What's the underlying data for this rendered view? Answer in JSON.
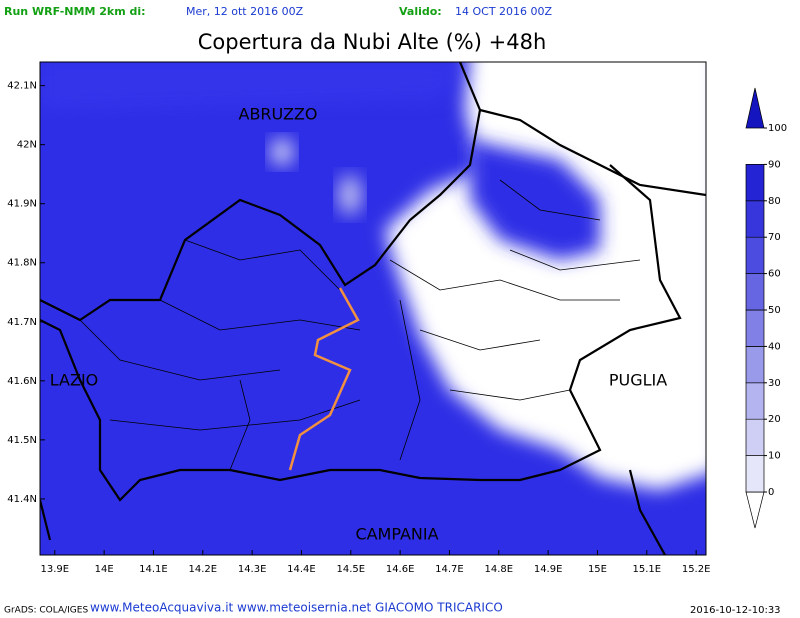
{
  "header": {
    "run_label": "Run WRF-NMM 2km di:",
    "run_date": "Mer, 12 ott 2016 00Z",
    "valid_label": "Valido:",
    "valid_date": "14 OCT 2016 00Z",
    "title": "Copertura da Nubi Alte (%) +48h"
  },
  "map": {
    "xlim": [
      13.87,
      15.22
    ],
    "ylim": [
      41.305,
      42.14
    ],
    "xticks": [
      {
        "value": 13.9,
        "label": "13.9E"
      },
      {
        "value": 14.0,
        "label": "14E"
      },
      {
        "value": 14.1,
        "label": "14.1E"
      },
      {
        "value": 14.2,
        "label": "14.2E"
      },
      {
        "value": 14.3,
        "label": "14.3E"
      },
      {
        "value": 14.4,
        "label": "14.4E"
      },
      {
        "value": 14.5,
        "label": "14.5E"
      },
      {
        "value": 14.6,
        "label": "14.6E"
      },
      {
        "value": 14.7,
        "label": "14.7E"
      },
      {
        "value": 14.8,
        "label": "14.8E"
      },
      {
        "value": 14.9,
        "label": "14.9E"
      },
      {
        "value": 15.0,
        "label": "15E"
      },
      {
        "value": 15.1,
        "label": "15.1E"
      },
      {
        "value": 15.2,
        "label": "15.2E"
      }
    ],
    "yticks": [
      {
        "value": 41.4,
        "label": "41.4N"
      },
      {
        "value": 41.5,
        "label": "41.5N"
      },
      {
        "value": 41.6,
        "label": "41.6N"
      },
      {
        "value": 41.7,
        "label": "41.7N"
      },
      {
        "value": 41.8,
        "label": "41.8N"
      },
      {
        "value": 41.9,
        "label": "41.9N"
      },
      {
        "value": 42.0,
        "label": "42N"
      },
      {
        "value": 42.1,
        "label": "42.1N"
      }
    ],
    "regions": [
      "ABRUZZO",
      "LAZIO",
      "PUGLIA",
      "CAMPANIA"
    ]
  },
  "colorbar": {
    "range": [
      0,
      100
    ],
    "ticks": [
      0,
      10,
      20,
      30,
      40,
      50,
      60,
      70,
      80,
      90,
      100
    ],
    "colors": [
      "#ffffff",
      "#e6e6fa",
      "#cfcff5",
      "#b4b4f0",
      "#9a9aeb",
      "#8080e6",
      "#6666e3",
      "#4c4ce0",
      "#3636dc",
      "#2424d4",
      "#1515c0"
    ]
  },
  "footer": {
    "grads": "GrADS: COLA/IGES",
    "credits": "www.MeteoAcquaviva.it www.meteoisernia.net GIACOMO TRICARICO",
    "timestamp": "2016-10-12-10:33"
  }
}
